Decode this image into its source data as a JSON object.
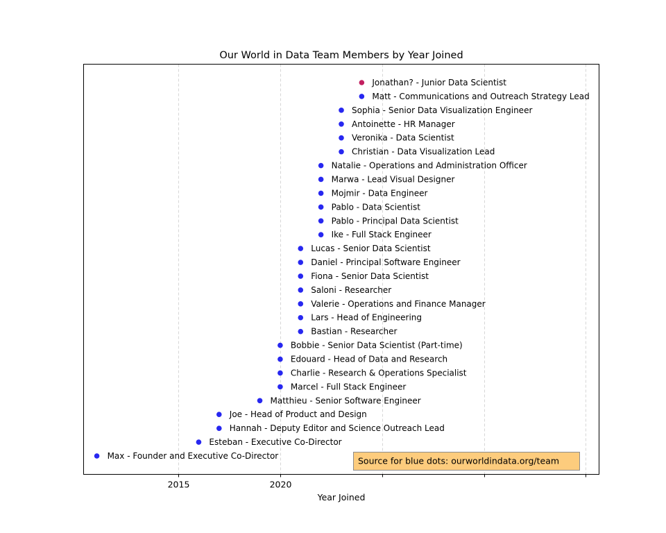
{
  "chart_data": {
    "type": "scatter",
    "title": "Our World in Data Team Members by Year Joined",
    "xlabel": "Year Joined",
    "ylabel": "",
    "xlim": [
      2010.35,
      2035.65
    ],
    "x_ticks": [
      2015,
      2020,
      2025,
      2030,
      2035
    ],
    "x_tick_labels": [
      "2015",
      "2020",
      "",
      "",
      ""
    ],
    "grid": "vertical dashed at x ticks",
    "colors": {
      "blue_dot": "#2727f0",
      "red_dot": "#c22060",
      "grid": "#cccccc",
      "note_background": "#fdcc7d",
      "note_border": "#8c8c8c"
    },
    "annotation": "Source for blue dots: ourworldindata.org/team",
    "points": [
      {
        "name": "Max - Founder and Executive Co-Director",
        "x": 2011,
        "color": "blue"
      },
      {
        "name": "Esteban - Executive Co-Director",
        "x": 2016,
        "color": "blue"
      },
      {
        "name": "Hannah - Deputy Editor and Science Outreach Lead",
        "x": 2017,
        "color": "blue"
      },
      {
        "name": "Joe - Head of Product and Design",
        "x": 2017,
        "color": "blue"
      },
      {
        "name": "Matthieu - Senior Software Engineer",
        "x": 2019,
        "color": "blue"
      },
      {
        "name": "Marcel - Full Stack Engineer",
        "x": 2020,
        "color": "blue"
      },
      {
        "name": "Charlie - Research & Operations Specialist",
        "x": 2020,
        "color": "blue"
      },
      {
        "name": "Edouard - Head of Data and Research",
        "x": 2020,
        "color": "blue"
      },
      {
        "name": "Bobbie - Senior Data Scientist (Part-time)",
        "x": 2020,
        "color": "blue"
      },
      {
        "name": "Bastian - Researcher",
        "x": 2021,
        "color": "blue"
      },
      {
        "name": "Lars - Head of Engineering",
        "x": 2021,
        "color": "blue"
      },
      {
        "name": "Valerie - Operations and Finance Manager",
        "x": 2021,
        "color": "blue"
      },
      {
        "name": "Saloni - Researcher",
        "x": 2021,
        "color": "blue"
      },
      {
        "name": "Fiona - Senior Data Scientist",
        "x": 2021,
        "color": "blue"
      },
      {
        "name": "Daniel - Principal Software Engineer",
        "x": 2021,
        "color": "blue"
      },
      {
        "name": "Lucas - Senior Data Scientist",
        "x": 2021,
        "color": "blue"
      },
      {
        "name": "Ike - Full Stack Engineer",
        "x": 2022,
        "color": "blue"
      },
      {
        "name": "Pablo - Principal Data Scientist",
        "x": 2022,
        "color": "blue"
      },
      {
        "name": "Pablo - Data Scientist",
        "x": 2022,
        "color": "blue"
      },
      {
        "name": "Mojmir - Data Engineer",
        "x": 2022,
        "color": "blue"
      },
      {
        "name": "Marwa - Lead Visual Designer",
        "x": 2022,
        "color": "blue"
      },
      {
        "name": "Natalie - Operations and Administration Officer",
        "x": 2022,
        "color": "blue"
      },
      {
        "name": "Christian - Data Visualization Lead",
        "x": 2023,
        "color": "blue"
      },
      {
        "name": "Veronika - Data Scientist",
        "x": 2023,
        "color": "blue"
      },
      {
        "name": "Antoinette - HR Manager",
        "x": 2023,
        "color": "blue"
      },
      {
        "name": "Sophia - Senior Data Visualization Engineer",
        "x": 2023,
        "color": "blue"
      },
      {
        "name": "Matt - Communications and Outreach Strategy Lead",
        "x": 2024,
        "color": "blue"
      },
      {
        "name": "Jonathan? - Junior Data Scientist",
        "x": 2024,
        "color": "red"
      }
    ]
  }
}
